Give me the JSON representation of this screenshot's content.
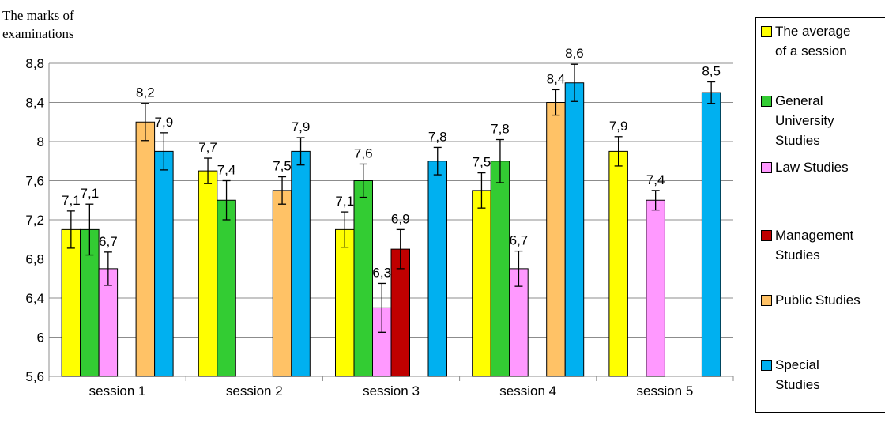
{
  "chart_data": {
    "type": "bar",
    "ylabel": "The marks of examinations",
    "categories": [
      "session 1",
      "session 2",
      "session 3",
      "session 4",
      "session 5"
    ],
    "ylim": [
      5.6,
      8.8
    ],
    "yticks": [
      "5,6",
      "6",
      "6,4",
      "6,8",
      "7,2",
      "7,6",
      "8",
      "8,4",
      "8,8"
    ],
    "ytick_values": [
      5.6,
      6.0,
      6.4,
      6.8,
      7.2,
      7.6,
      8.0,
      8.4,
      8.8
    ],
    "grid": true,
    "legend_position": "right",
    "series": [
      {
        "name": "The average of a session",
        "color": "#FFFF00",
        "values": [
          7.1,
          7.7,
          7.1,
          7.5,
          7.9
        ],
        "errors": [
          0.19,
          0.13,
          0.18,
          0.18,
          0.15
        ],
        "labels": [
          "7,1",
          "7,7",
          "7,1",
          "7,5",
          "7,9"
        ]
      },
      {
        "name": "General University Studies",
        "color": "#33CC33",
        "values": [
          7.1,
          7.4,
          7.6,
          7.8,
          null
        ],
        "errors": [
          0.26,
          0.2,
          0.17,
          0.22,
          null
        ],
        "labels": [
          "7,1",
          "7,4",
          "7,6",
          "7,8",
          ""
        ]
      },
      {
        "name": "Law Studies",
        "color": "#FF99FF",
        "values": [
          6.7,
          null,
          6.3,
          6.7,
          7.4
        ],
        "errors": [
          0.17,
          null,
          0.25,
          0.18,
          0.1
        ],
        "labels": [
          "6,7",
          "",
          "6,3",
          "6,7",
          "7,4"
        ]
      },
      {
        "name": "Management Studies",
        "color": "#C00000",
        "values": [
          null,
          null,
          6.9,
          null,
          null
        ],
        "errors": [
          null,
          null,
          0.2,
          null,
          null
        ],
        "labels": [
          "",
          "",
          "6,9",
          "",
          ""
        ]
      },
      {
        "name": "Public Studies",
        "color": "#FFC266",
        "values": [
          8.2,
          7.5,
          null,
          8.4,
          null
        ],
        "errors": [
          0.19,
          0.14,
          null,
          0.13,
          null
        ],
        "labels": [
          "8,2",
          "7,5",
          "",
          "8,4",
          ""
        ]
      },
      {
        "name": "Special Studies",
        "color": "#00B0F0",
        "values": [
          7.9,
          7.9,
          7.8,
          8.6,
          8.5
        ],
        "errors": [
          0.19,
          0.14,
          0.14,
          0.19,
          0.11
        ],
        "labels": [
          "7,9",
          "7,9",
          "7,8",
          "8,6",
          "8,5"
        ]
      }
    ],
    "legend": [
      {
        "lines": [
          "The average",
          "of a session"
        ],
        "color": "#FFFF00"
      },
      {
        "lines": [
          "General",
          "University",
          "Studies"
        ],
        "color": "#33CC33"
      },
      {
        "lines": [
          "Law Studies"
        ],
        "color": "#FF99FF"
      },
      {
        "lines": [
          "Management",
          "Studies"
        ],
        "color": "#C00000"
      },
      {
        "lines": [
          "Public Studies"
        ],
        "color": "#FFC266"
      },
      {
        "lines": [
          "Special",
          "Studies"
        ],
        "color": "#00B0F0"
      }
    ]
  }
}
